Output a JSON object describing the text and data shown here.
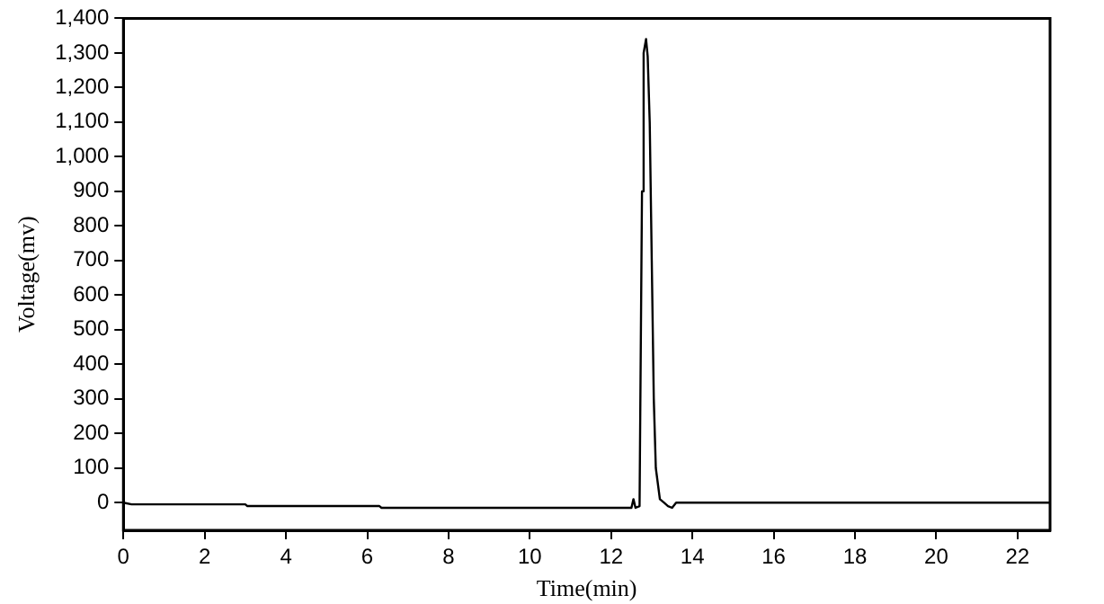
{
  "chart_data": {
    "type": "line",
    "xlabel": "Time(min)",
    "ylabel": "Voltage(mv)",
    "x": [
      0,
      0.2,
      3,
      3.05,
      6.3,
      6.35,
      12.5,
      12.55,
      12.6,
      12.7,
      12.72,
      12.76,
      12.8,
      12.86,
      12.9,
      12.95,
      13.0,
      13.05,
      13.1,
      13.2,
      13.3,
      13.4,
      13.5,
      13.6,
      22.8
    ],
    "series": [
      {
        "color": "#000000",
        "values": [
          0,
          -5,
          -5,
          -10,
          -10,
          -15,
          -15,
          10,
          -15,
          -10,
          300,
          900,
          1300,
          1340,
          1290,
          1100,
          700,
          300,
          100,
          10,
          0,
          -10,
          -15,
          0,
          0
        ]
      }
    ],
    "xlim": [
      0,
      22.8
    ],
    "xticks": [
      0,
      2,
      4,
      6,
      8,
      10,
      12,
      14,
      16,
      18,
      20,
      22
    ],
    "ylim": [
      -80,
      1400
    ],
    "yticks": [
      0,
      100,
      200,
      300,
      400,
      500,
      600,
      700,
      800,
      900,
      {
        "value": 1000,
        "label": "1,000"
      },
      {
        "value": 1100,
        "label": "1,100"
      },
      {
        "value": 1200,
        "label": "1,200"
      },
      {
        "value": 1300,
        "label": "1,300"
      },
      {
        "value": 1400,
        "label": "1,400"
      }
    ],
    "grid": false,
    "legend": false,
    "marker": "none",
    "line_style": "solid"
  }
}
